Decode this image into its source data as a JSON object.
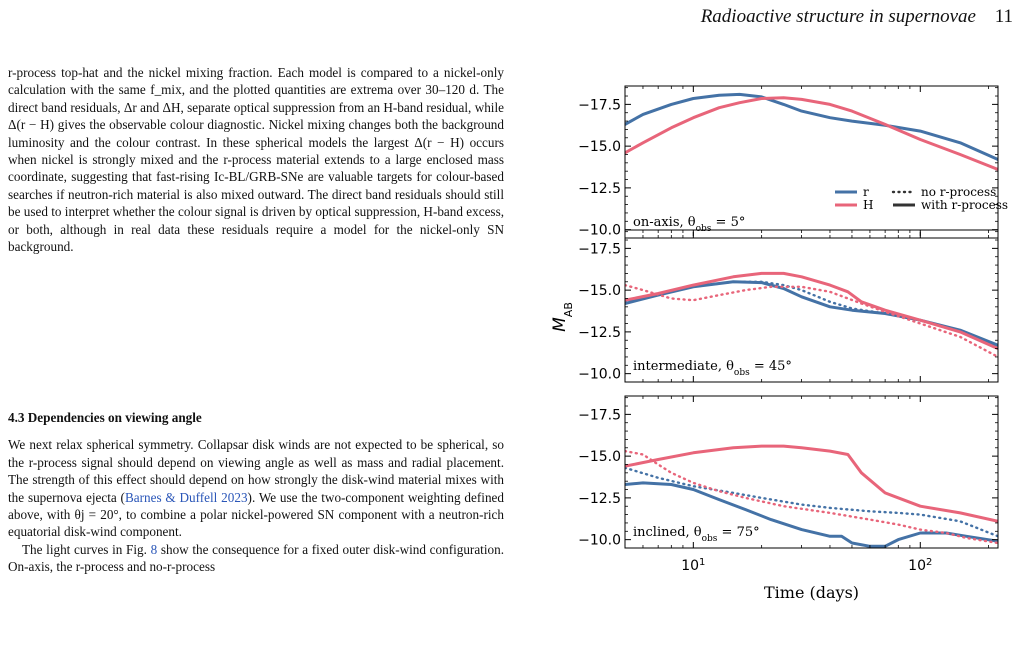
{
  "header": {
    "title": "Radioactive structure in supernovae",
    "page_number": "11"
  },
  "body": {
    "para1": "r-process top-hat and the nickel mixing fraction. Each model is compared to a nickel-only calculation with the same f_mix, and the plotted quantities are extrema over 30–120 d. The direct band residuals, Δr and ΔH, separate optical suppression from an H-band residual, while Δ(r − H) gives the observable colour diagnostic. Nickel mixing changes both the background luminosity and the colour contrast. In these spherical models the largest Δ(r − H) occurs when nickel is strongly mixed and the r-process material extends to a large enclosed mass coordinate, suggesting that fast-rising Ic-BL/GRB-SNe are valuable targets for colour-based searches if neutron-rich material is also mixed outward. The direct band residuals should still be used to interpret whether the colour signal is driven by optical suppression, H-band excess, or both, although in real data these residuals require a model for the nickel-only SN background.",
    "section_heading": "4.3 Dependencies on viewing angle",
    "para2_before_cite": "We next relax spherical symmetry. Collapsar disk winds are not expected to be spherical, so the r-process signal should depend on viewing angle as well as mass and radial placement. The strength of this effect should depend on how strongly the disk-wind material mixes with the supernova ejecta (",
    "citation": "Barnes & Duffell 2023",
    "para2_after_cite": "). We use the two-component weighting defined above, with θj = 20°, to combine a polar nickel-powered SN component with a neutron-rich equatorial disk-wind component.",
    "para3_before_ref": "The light curves in Fig. ",
    "fig_ref": "8",
    "para3_after_ref": " show the consequence for a fixed outer disk-wind configuration. On-axis, the r-process and no-r-process"
  },
  "chart_data": {
    "type": "line",
    "ylabel": "M_AB",
    "xlabel": "Time (days)",
    "x_scale": "log",
    "xlim": [
      5,
      220
    ],
    "ylim": [
      -9.5,
      -18.6
    ],
    "y_inverted": true,
    "x_ticks": [
      "10^1",
      "10^2"
    ],
    "y_ticks": [
      "−17.5",
      "−15.0",
      "−12.5",
      "−10.0"
    ],
    "colors": {
      "r": "#4472a6",
      "H": "#e8657a"
    },
    "legend": {
      "placement": "lower-right",
      "bands": [
        "r",
        "H"
      ],
      "styles": [
        "no r-process",
        "with r-process"
      ]
    },
    "panels": [
      {
        "label": "on-axis, θ_obs = 5°",
        "series": [
          {
            "band": "r",
            "style": "with r-process",
            "x": [
              5,
              6,
              8,
              10,
              13,
              16,
              20,
              25,
              30,
              40,
              50,
              70,
              100,
              150,
              220
            ],
            "y": [
              -16.3,
              -16.9,
              -17.5,
              -17.85,
              -18.05,
              -18.1,
              -17.95,
              -17.5,
              -17.1,
              -16.7,
              -16.5,
              -16.25,
              -15.9,
              -15.2,
              -14.2
            ]
          },
          {
            "band": "H",
            "style": "with r-process",
            "x": [
              5,
              6,
              8,
              10,
              13,
              16,
              20,
              25,
              30,
              40,
              50,
              70,
              100,
              150,
              220
            ],
            "y": [
              -14.6,
              -15.2,
              -16.1,
              -16.7,
              -17.3,
              -17.6,
              -17.85,
              -17.9,
              -17.8,
              -17.5,
              -17.1,
              -16.3,
              -15.4,
              -14.5,
              -13.6
            ]
          }
        ]
      },
      {
        "label": "intermediate, θ_obs = 45°",
        "series": [
          {
            "band": "r",
            "style": "with r-process",
            "x": [
              5,
              7,
              10,
              15,
              20,
              25,
              30,
              40,
              50,
              70,
              100,
              150,
              220
            ],
            "y": [
              -14.2,
              -14.7,
              -15.2,
              -15.5,
              -15.45,
              -15.1,
              -14.6,
              -14.0,
              -13.8,
              -13.6,
              -13.2,
              -12.6,
              -11.7
            ]
          },
          {
            "band": "r",
            "style": "no r-process",
            "x": [
              5,
              7,
              10,
              15,
              20,
              25,
              30,
              40,
              50,
              70,
              100,
              150,
              220
            ],
            "y": [
              -14.3,
              -14.7,
              -15.2,
              -15.5,
              -15.5,
              -15.3,
              -15.0,
              -14.3,
              -13.9,
              -13.6,
              -13.2,
              -12.5,
              -11.6
            ]
          },
          {
            "band": "H",
            "style": "with r-process",
            "x": [
              5,
              7,
              10,
              15,
              20,
              25,
              30,
              40,
              48,
              55,
              70,
              100,
              150,
              220
            ],
            "y": [
              -14.4,
              -14.8,
              -15.3,
              -15.8,
              -16.0,
              -16.0,
              -15.8,
              -15.3,
              -14.9,
              -14.3,
              -13.8,
              -13.2,
              -12.5,
              -11.5
            ]
          },
          {
            "band": "H",
            "style": "no r-process",
            "x": [
              5,
              6,
              8,
              10,
              13,
              17,
              22,
              30,
              40,
              55,
              70,
              100,
              150,
              220
            ],
            "y": [
              -15.3,
              -15.0,
              -14.5,
              -14.4,
              -14.7,
              -15.0,
              -15.2,
              -15.2,
              -14.9,
              -14.2,
              -13.7,
              -13.0,
              -12.2,
              -11.0
            ]
          }
        ]
      },
      {
        "label": "inclined, θ_obs = 75°",
        "series": [
          {
            "band": "r",
            "style": "with r-process",
            "x": [
              5,
              6,
              8,
              10,
              13,
              17,
              22,
              30,
              40,
              45,
              50,
              60,
              70,
              80,
              100,
              130,
              160,
              220
            ],
            "y": [
              -13.3,
              -13.4,
              -13.3,
              -13.0,
              -12.4,
              -11.8,
              -11.2,
              -10.6,
              -10.2,
              -10.2,
              -9.8,
              -9.6,
              -9.6,
              -10.0,
              -10.4,
              -10.4,
              -10.2,
              -9.9
            ]
          },
          {
            "band": "r",
            "style": "no r-process",
            "x": [
              5,
              7,
              10,
              15,
              20,
              30,
              40,
              60,
              80,
              100,
              150,
              220
            ],
            "y": [
              -14.3,
              -13.7,
              -13.2,
              -12.8,
              -12.5,
              -12.1,
              -11.9,
              -11.7,
              -11.6,
              -11.5,
              -11.1,
              -10.2
            ]
          },
          {
            "band": "H",
            "style": "with r-process",
            "x": [
              5,
              7,
              10,
              15,
              20,
              25,
              30,
              40,
              48,
              55,
              70,
              100,
              150,
              220
            ],
            "y": [
              -14.4,
              -14.8,
              -15.2,
              -15.5,
              -15.6,
              -15.6,
              -15.5,
              -15.3,
              -15.1,
              -14.0,
              -12.8,
              -12.0,
              -11.6,
              -11.1
            ]
          },
          {
            "band": "H",
            "style": "no r-process",
            "x": [
              5,
              6,
              7,
              8,
              10,
              13,
              17,
              25,
              40,
              60,
              80,
              100,
              130,
              160,
              220
            ],
            "y": [
              -15.3,
              -15.1,
              -14.5,
              -14.0,
              -13.4,
              -12.9,
              -12.5,
              -12.0,
              -11.6,
              -11.2,
              -10.9,
              -10.6,
              -10.4,
              -10.1,
              -9.8
            ]
          }
        ]
      }
    ]
  }
}
